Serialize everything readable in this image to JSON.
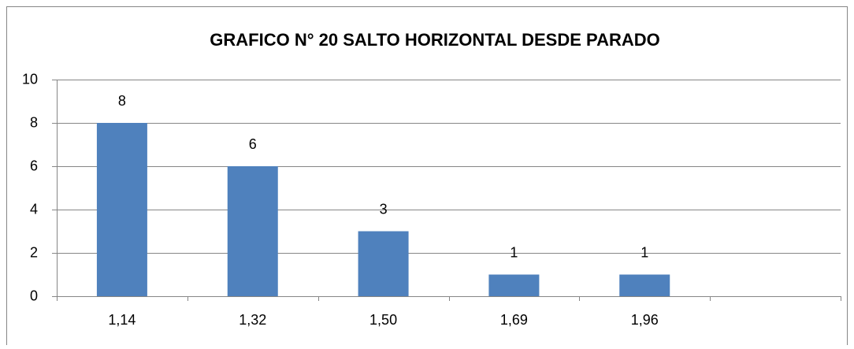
{
  "chart_data": {
    "type": "bar",
    "title": "GRAFICO N° 20 SALTO HORIZONTAL DESDE PARADO",
    "categories": [
      "1,14",
      "1,32",
      "1,50",
      "1,69",
      "1,96",
      null
    ],
    "values": [
      8,
      6,
      3,
      1,
      1,
      null
    ],
    "color": "#4f81bd",
    "ylim": [
      0,
      10
    ],
    "yticks": [
      0,
      2,
      4,
      6,
      8,
      10
    ],
    "grid": true
  }
}
